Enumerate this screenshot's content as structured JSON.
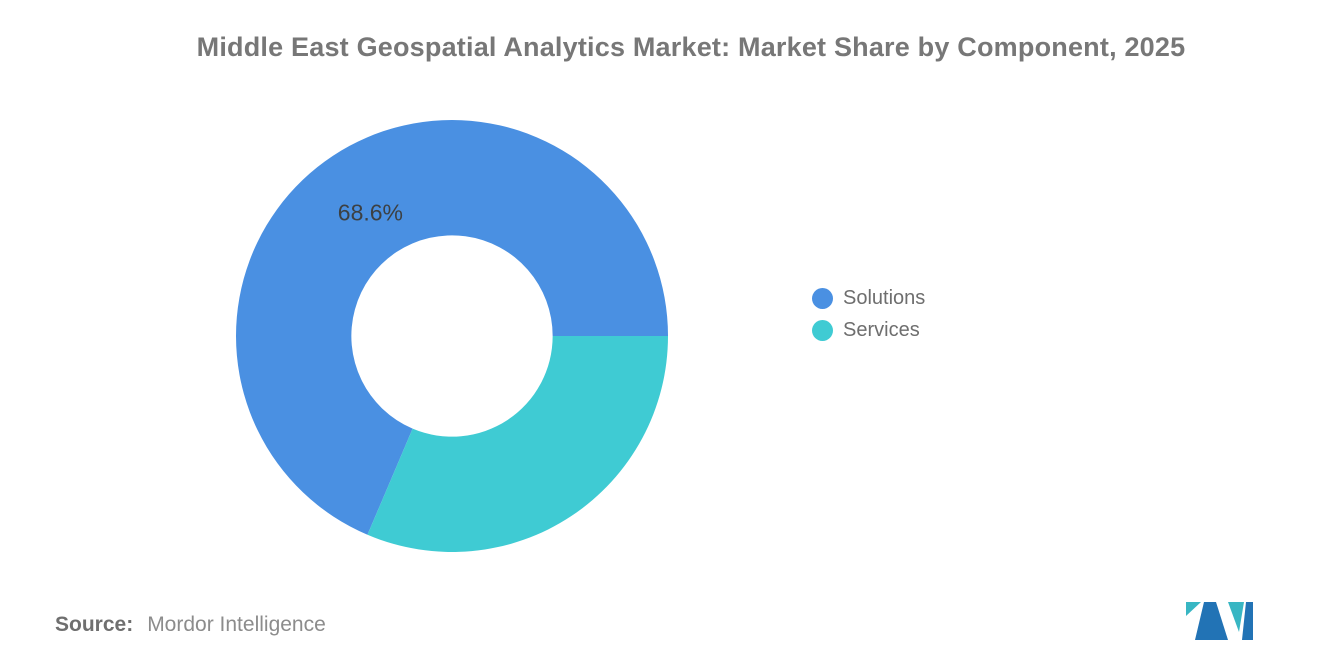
{
  "chart_data": {
    "type": "pie",
    "subtype": "donut",
    "title": "Middle East Geospatial Analytics Market: Market Share by Component, 2025",
    "segments": [
      {
        "label": "Solutions",
        "value": 68.6,
        "color": "#4A90E2",
        "data_label": "68.6%",
        "data_label_visible": true
      },
      {
        "label": "Services",
        "value": 31.4,
        "color": "#3FCBD3",
        "data_label_visible": false
      }
    ],
    "start_angle_deg": 0,
    "direction": "counterclockwise",
    "inner_radius_ratio": 0.466,
    "label_radius_ratio": 0.685,
    "legend_position": "right",
    "legend_labels": [
      "Solutions",
      "Services"
    ],
    "grid": false
  },
  "source": {
    "label": "Source:",
    "value": "Mordor Intelligence"
  },
  "colors": {
    "background": "#FFFFFF",
    "title_text": "#777777",
    "legend_text": "#6E6E6E",
    "data_label_text": "#3C4043",
    "source_label": "#6F6F6F",
    "source_value": "#8C8C8C",
    "solutions_blue": "#4A90E2",
    "services_teal": "#3FCBD3",
    "logo_blue": "#2273B5",
    "logo_teal": "#38B6C3"
  }
}
